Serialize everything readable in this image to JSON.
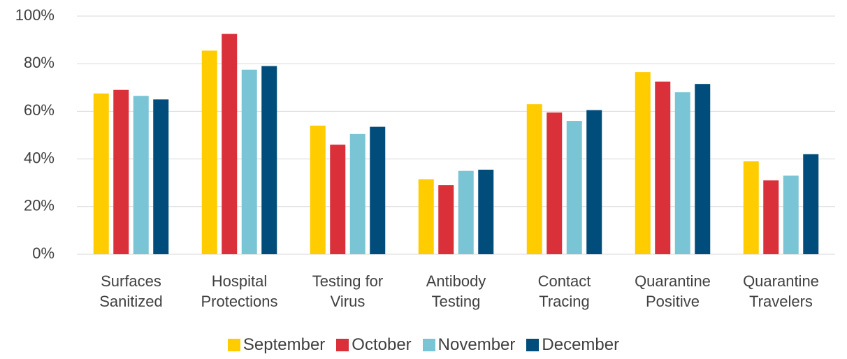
{
  "chart_data": {
    "type": "bar",
    "categories": [
      "Surfaces Sanitized",
      "Hospital Protections",
      "Testing for Virus",
      "Antibody Testing",
      "Contact Tracing",
      "Quarantine Positive",
      "Quarantine Travelers"
    ],
    "series": [
      {
        "name": "September",
        "color": "#ffcc00",
        "values": [
          67.5,
          85.5,
          54,
          31.5,
          63,
          76.5,
          39
        ]
      },
      {
        "name": "October",
        "color": "#d9303a",
        "values": [
          69,
          92.5,
          46,
          29,
          59.5,
          72.5,
          31
        ]
      },
      {
        "name": "November",
        "color": "#7ac5d5",
        "values": [
          66.5,
          77.5,
          50.5,
          35,
          56,
          68,
          33
        ]
      },
      {
        "name": "December",
        "color": "#004c7a",
        "values": [
          65,
          79,
          53.5,
          35.5,
          60.5,
          71.5,
          42
        ]
      }
    ],
    "ylim": [
      0,
      100
    ],
    "yticks": [
      {
        "value": 0,
        "label": "0%"
      },
      {
        "value": 20,
        "label": "20%"
      },
      {
        "value": 40,
        "label": "40%"
      },
      {
        "value": 60,
        "label": "60%"
      },
      {
        "value": 80,
        "label": "80%"
      },
      {
        "value": 100,
        "label": "100%"
      }
    ],
    "grid": true
  }
}
